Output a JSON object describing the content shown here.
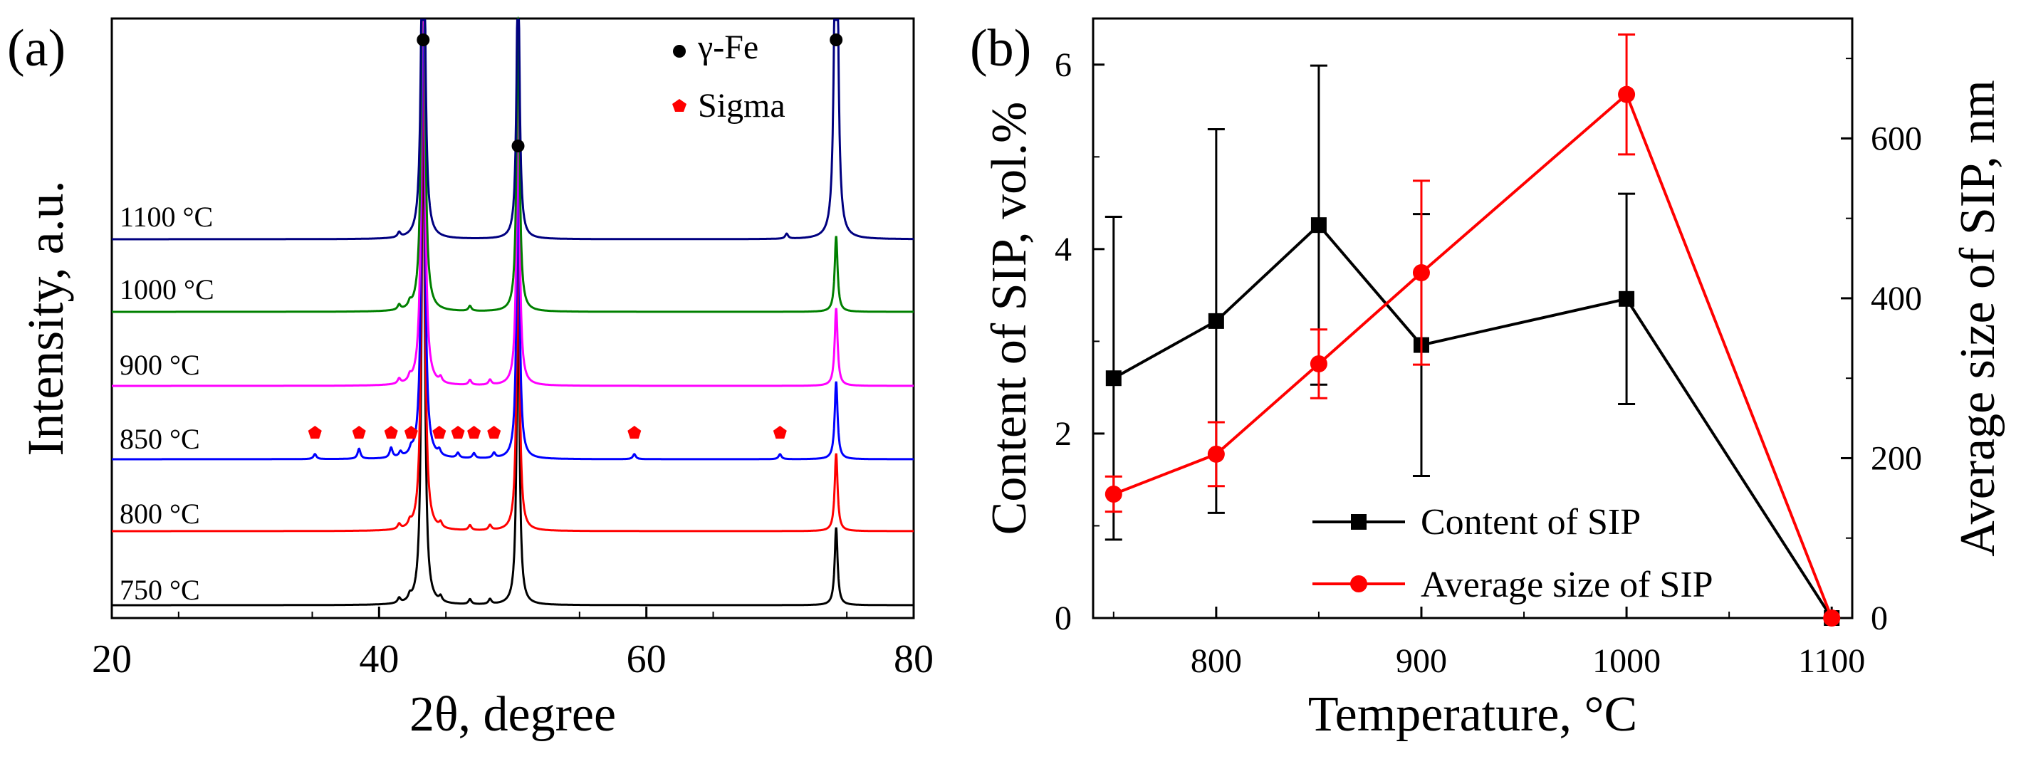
{
  "chart_data": [
    {
      "type": "line",
      "panel_label": "(a)",
      "xlabel": "2θ, degree",
      "ylabel": "Intensity, a.u.",
      "xlim": [
        20,
        80
      ],
      "xticks": [
        "20",
        "40",
        "60",
        "80"
      ],
      "legend": [
        {
          "label": "γ-Fe",
          "marker": "circle",
          "color": "#000000"
        },
        {
          "label": "Sigma",
          "marker": "pentagon",
          "color": "#ff0000"
        }
      ],
      "peaks": {
        "gamma_fe": [
          43.3,
          50.4,
          74.2
        ],
        "sigma": [
          35.2,
          38.5,
          40.9,
          42.4,
          44.5,
          45.9,
          47.1,
          48.6,
          59.1,
          70.0
        ]
      },
      "series": [
        {
          "name": "750 °C",
          "color": "#000000",
          "minor_peaks": [
            41.5,
            42.3,
            44.6,
            46.8,
            48.3
          ],
          "peak_heights": [
            1.0,
            0.55,
            0.14
          ]
        },
        {
          "name": "800 °C",
          "color": "#ff0000",
          "minor_peaks": [
            41.5,
            42.3,
            44.6,
            46.8,
            48.3
          ],
          "peak_heights": [
            1.0,
            0.55,
            0.14
          ]
        },
        {
          "name": "850 °C",
          "color": "#0000ff",
          "minor_peaks": [
            35.2,
            38.5,
            40.9,
            41.6,
            42.4,
            44.5,
            45.9,
            47.1,
            48.6,
            59.1,
            70.0
          ],
          "peak_heights": [
            1.0,
            0.55,
            0.14
          ]
        },
        {
          "name": "900 °C",
          "color": "#ff00ff",
          "minor_peaks": [
            41.5,
            42.3,
            44.6,
            46.8,
            48.3
          ],
          "peak_heights": [
            1.0,
            0.55,
            0.14
          ]
        },
        {
          "name": "1000 °C",
          "color": "#008000",
          "minor_peaks": [
            41.5,
            42.3,
            46.8
          ],
          "peak_heights": [
            1.0,
            0.55,
            0.14
          ]
        },
        {
          "name": "1100 °C",
          "color": "#000080",
          "minor_peaks": [
            41.5,
            70.5
          ],
          "peak_heights": [
            1.0,
            0.55,
            1.0
          ]
        }
      ]
    },
    {
      "type": "line",
      "panel_label": "(b)",
      "xlabel": "Temperature, °C",
      "ylabel": "Content of SIP, vol.%",
      "y2label": "Average size of SIP, nm",
      "xlim": [
        740,
        1110
      ],
      "ylim": [
        0,
        6.5
      ],
      "y2lim": [
        0,
        750
      ],
      "xticks": [
        "800",
        "900",
        "1000",
        "1100"
      ],
      "yticks": [
        "0",
        "2",
        "4",
        "6"
      ],
      "y2ticks": [
        "0",
        "200",
        "400",
        "600"
      ],
      "x": [
        750,
        800,
        850,
        900,
        1000,
        1100
      ],
      "series": [
        {
          "name": "Content of SIP",
          "axis": "left",
          "color": "#000000",
          "marker": "square",
          "values": [
            2.6,
            3.22,
            4.26,
            2.96,
            3.46,
            0.0
          ],
          "errors": [
            1.75,
            2.08,
            1.73,
            1.42,
            1.14,
            0
          ]
        },
        {
          "name": "Average size of SIP",
          "axis": "right",
          "color": "#ff0000",
          "marker": "circle",
          "values": [
            155,
            205,
            318,
            432,
            655,
            0
          ],
          "errors": [
            22,
            40,
            43,
            115,
            75,
            0
          ]
        }
      ]
    }
  ]
}
